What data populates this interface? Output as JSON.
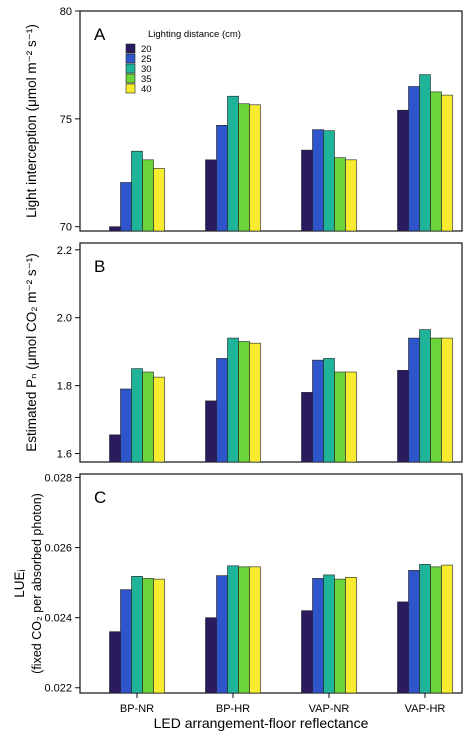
{
  "figure": {
    "xlabel": "LED arrangement-floor reflectance",
    "legend_title": "Lighting distance (cm)"
  },
  "colors": {
    "20": "#2b1a5e",
    "25": "#2e55c9",
    "30": "#1fb39a",
    "35": "#6bd43a",
    "40": "#f7ec2f",
    "axis": "#111111"
  },
  "chart_data": [
    {
      "type": "bar",
      "panel_label": "A",
      "ylabel": "Light interception (μmol m⁻² s⁻¹)",
      "ylim": [
        69.8,
        80
      ],
      "yticks": [
        70,
        75,
        80
      ],
      "ytick_labels": [
        "70",
        "75",
        "80"
      ],
      "categories": [
        "BP-NR",
        "BP-HR",
        "VAP-NR",
        "VAP-HR"
      ],
      "legend": {
        "placement": "top-left"
      },
      "series": [
        {
          "name": "20",
          "values": [
            70.0,
            73.1,
            73.55,
            75.4
          ]
        },
        {
          "name": "25",
          "values": [
            72.05,
            74.7,
            74.5,
            76.5
          ]
        },
        {
          "name": "30",
          "values": [
            73.5,
            76.05,
            74.45,
            77.05
          ]
        },
        {
          "name": "35",
          "values": [
            73.1,
            75.7,
            73.2,
            76.25
          ]
        },
        {
          "name": "40",
          "values": [
            72.7,
            75.65,
            73.1,
            76.1
          ]
        }
      ]
    },
    {
      "type": "bar",
      "panel_label": "B",
      "ylabel": "Estimated Pₙ (μmol CO₂ m⁻² s⁻¹)",
      "ylim": [
        1.575,
        2.22
      ],
      "yticks": [
        1.6,
        1.8,
        2.0,
        2.2
      ],
      "ytick_labels": [
        "1.6",
        "1.8",
        "2.0",
        "2.2"
      ],
      "categories": [
        "BP-NR",
        "BP-HR",
        "VAP-NR",
        "VAP-HR"
      ],
      "series": [
        {
          "name": "20",
          "values": [
            1.655,
            1.755,
            1.78,
            1.845
          ]
        },
        {
          "name": "25",
          "values": [
            1.79,
            1.88,
            1.875,
            1.94
          ]
        },
        {
          "name": "30",
          "values": [
            1.85,
            1.94,
            1.88,
            1.965
          ]
        },
        {
          "name": "35",
          "values": [
            1.84,
            1.93,
            1.84,
            1.94
          ]
        },
        {
          "name": "40",
          "values": [
            1.825,
            1.925,
            1.84,
            1.94
          ]
        }
      ]
    },
    {
      "type": "bar",
      "panel_label": "C",
      "ylabel_line1": "LUEᵢ",
      "ylabel_line2": "(fixed CO₂ per absorbed photon)",
      "ylim": [
        0.02185,
        0.0281
      ],
      "yticks": [
        0.022,
        0.024,
        0.026,
        0.028
      ],
      "ytick_labels": [
        "0.022",
        "0.024",
        "0.026",
        "0.028"
      ],
      "categories": [
        "BP-NR",
        "BP-HR",
        "VAP-NR",
        "VAP-HR"
      ],
      "series": [
        {
          "name": "20",
          "values": [
            0.0236,
            0.024,
            0.0242,
            0.02445
          ]
        },
        {
          "name": "25",
          "values": [
            0.0248,
            0.0252,
            0.02512,
            0.02535
          ]
        },
        {
          "name": "30",
          "values": [
            0.02518,
            0.02548,
            0.02522,
            0.02552
          ]
        },
        {
          "name": "35",
          "values": [
            0.02512,
            0.02545,
            0.0251,
            0.02545
          ]
        },
        {
          "name": "40",
          "values": [
            0.0251,
            0.02545,
            0.02515,
            0.0255
          ]
        }
      ]
    }
  ]
}
